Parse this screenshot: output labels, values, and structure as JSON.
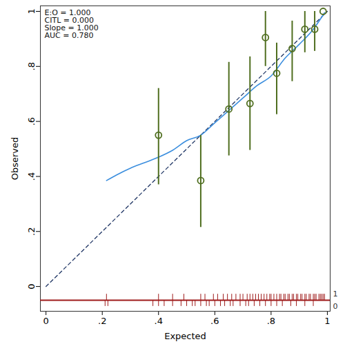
{
  "chart_data": {
    "type": "scatter",
    "x_label": "Expected",
    "y_label": "Observed",
    "xlim": [
      -0.02,
      1.01
    ],
    "ylim": [
      -0.09,
      1.02
    ],
    "xticks": [
      0,
      {
        "value": 0.2,
        "label": ".2"
      },
      {
        "value": 0.4,
        "label": ".4"
      },
      {
        "value": 0.6,
        "label": ".6"
      },
      {
        "value": 0.8,
        "label": ".8"
      },
      1
    ],
    "yticks": [
      0,
      {
        "value": 0.2,
        "label": ".2"
      },
      {
        "value": 0.4,
        "label": ".4"
      },
      {
        "value": 0.6,
        "label": ".6"
      },
      {
        "value": 0.8,
        "label": ".8"
      },
      1
    ],
    "annotations": [
      "E:O = 1.000",
      "CITL = 0.000",
      "Slope = 1.000",
      "AUC = 0.780"
    ],
    "groups": {
      "color": "#4f6e1f",
      "marker": "circle",
      "x": [
        0.4,
        0.55,
        0.65,
        0.725,
        0.78,
        0.82,
        0.875,
        0.92,
        0.955,
        0.985
      ],
      "y": [
        0.55,
        0.385,
        0.645,
        0.665,
        0.905,
        0.775,
        0.865,
        0.935,
        0.935,
        1.0
      ],
      "lower": [
        0.37,
        0.215,
        0.475,
        0.495,
        0.8,
        0.625,
        0.745,
        0.85,
        0.855,
        null
      ],
      "upper": [
        0.72,
        0.55,
        0.815,
        0.835,
        1.0,
        0.885,
        0.965,
        1.0,
        1.0,
        null
      ]
    },
    "smoothed": {
      "color": "#3b8ede",
      "x": [
        0.215,
        0.25,
        0.3,
        0.35,
        0.4,
        0.45,
        0.5,
        0.55,
        0.6,
        0.65,
        0.7,
        0.75,
        0.8,
        0.85,
        0.9,
        0.95,
        0.99
      ],
      "y": [
        0.385,
        0.405,
        0.43,
        0.45,
        0.47,
        0.495,
        0.53,
        0.55,
        0.595,
        0.64,
        0.685,
        0.73,
        0.765,
        0.83,
        0.88,
        0.935,
        0.995
      ]
    },
    "reference": {
      "color": "#1f3564",
      "line_style": "dashed",
      "x": [
        0,
        1
      ],
      "y": [
        0,
        1
      ]
    },
    "rug": {
      "color": "#9e1b1b",
      "y": -0.05,
      "event_label": "1",
      "nonevent_label": "0",
      "events": [
        0.215,
        0.4,
        0.45,
        0.49,
        0.55,
        0.565,
        0.595,
        0.61,
        0.63,
        0.645,
        0.66,
        0.675,
        0.69,
        0.7,
        0.715,
        0.725,
        0.735,
        0.745,
        0.755,
        0.765,
        0.775,
        0.785,
        0.795,
        0.8,
        0.81,
        0.82,
        0.83,
        0.835,
        0.845,
        0.85,
        0.86,
        0.865,
        0.875,
        0.88,
        0.89,
        0.895,
        0.905,
        0.91,
        0.92,
        0.925,
        0.935,
        0.94,
        0.95,
        0.955,
        0.96,
        0.97,
        0.975,
        0.98,
        0.985,
        0.99
      ],
      "nonevents": [
        0.21,
        0.22,
        0.38,
        0.4,
        0.42,
        0.45,
        0.48,
        0.5,
        0.52,
        0.53,
        0.55,
        0.57,
        0.58,
        0.6,
        0.62,
        0.635,
        0.655,
        0.665,
        0.69,
        0.71,
        0.72,
        0.74,
        0.76,
        0.78,
        0.8,
        0.82,
        0.84,
        0.87,
        0.89,
        0.92,
        0.95
      ]
    }
  }
}
